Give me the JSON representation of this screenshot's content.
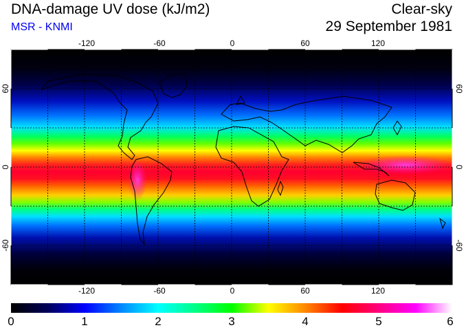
{
  "header": {
    "title": "DNA-damage UV dose (kJ/m2)",
    "subtitle": "MSR - KNMI",
    "condition": "Clear-sky",
    "date": "29 September 1981"
  },
  "colors": {
    "subtitle": "#0000ee",
    "background": "#ffffff",
    "map_background": "#000000",
    "coastline": "#000000",
    "grid": "#000000"
  },
  "axes": {
    "lon_ticks": [
      "-120",
      "-60",
      "0",
      "60",
      "120"
    ],
    "lat_ticks": [
      "60",
      "0",
      "-60"
    ]
  },
  "colorbar": {
    "labels": [
      "0",
      "1",
      "2",
      "3",
      "4",
      "5",
      "6"
    ],
    "min": 0,
    "max": 6,
    "stops": [
      {
        "value": 0.0,
        "color": "#000000"
      },
      {
        "value": 0.5,
        "color": "#00005a"
      },
      {
        "value": 1.0,
        "color": "#0000ff"
      },
      {
        "value": 1.5,
        "color": "#0088ff"
      },
      {
        "value": 2.0,
        "color": "#00ffff"
      },
      {
        "value": 2.5,
        "color": "#00ff88"
      },
      {
        "value": 3.0,
        "color": "#00ff00"
      },
      {
        "value": 3.5,
        "color": "#ffff00"
      },
      {
        "value": 4.0,
        "color": "#ff8800"
      },
      {
        "value": 4.5,
        "color": "#ff0000"
      },
      {
        "value": 5.0,
        "color": "#ff0080"
      },
      {
        "value": 5.5,
        "color": "#ff00ff"
      },
      {
        "value": 6.0,
        "color": "#ffffff"
      }
    ]
  }
}
